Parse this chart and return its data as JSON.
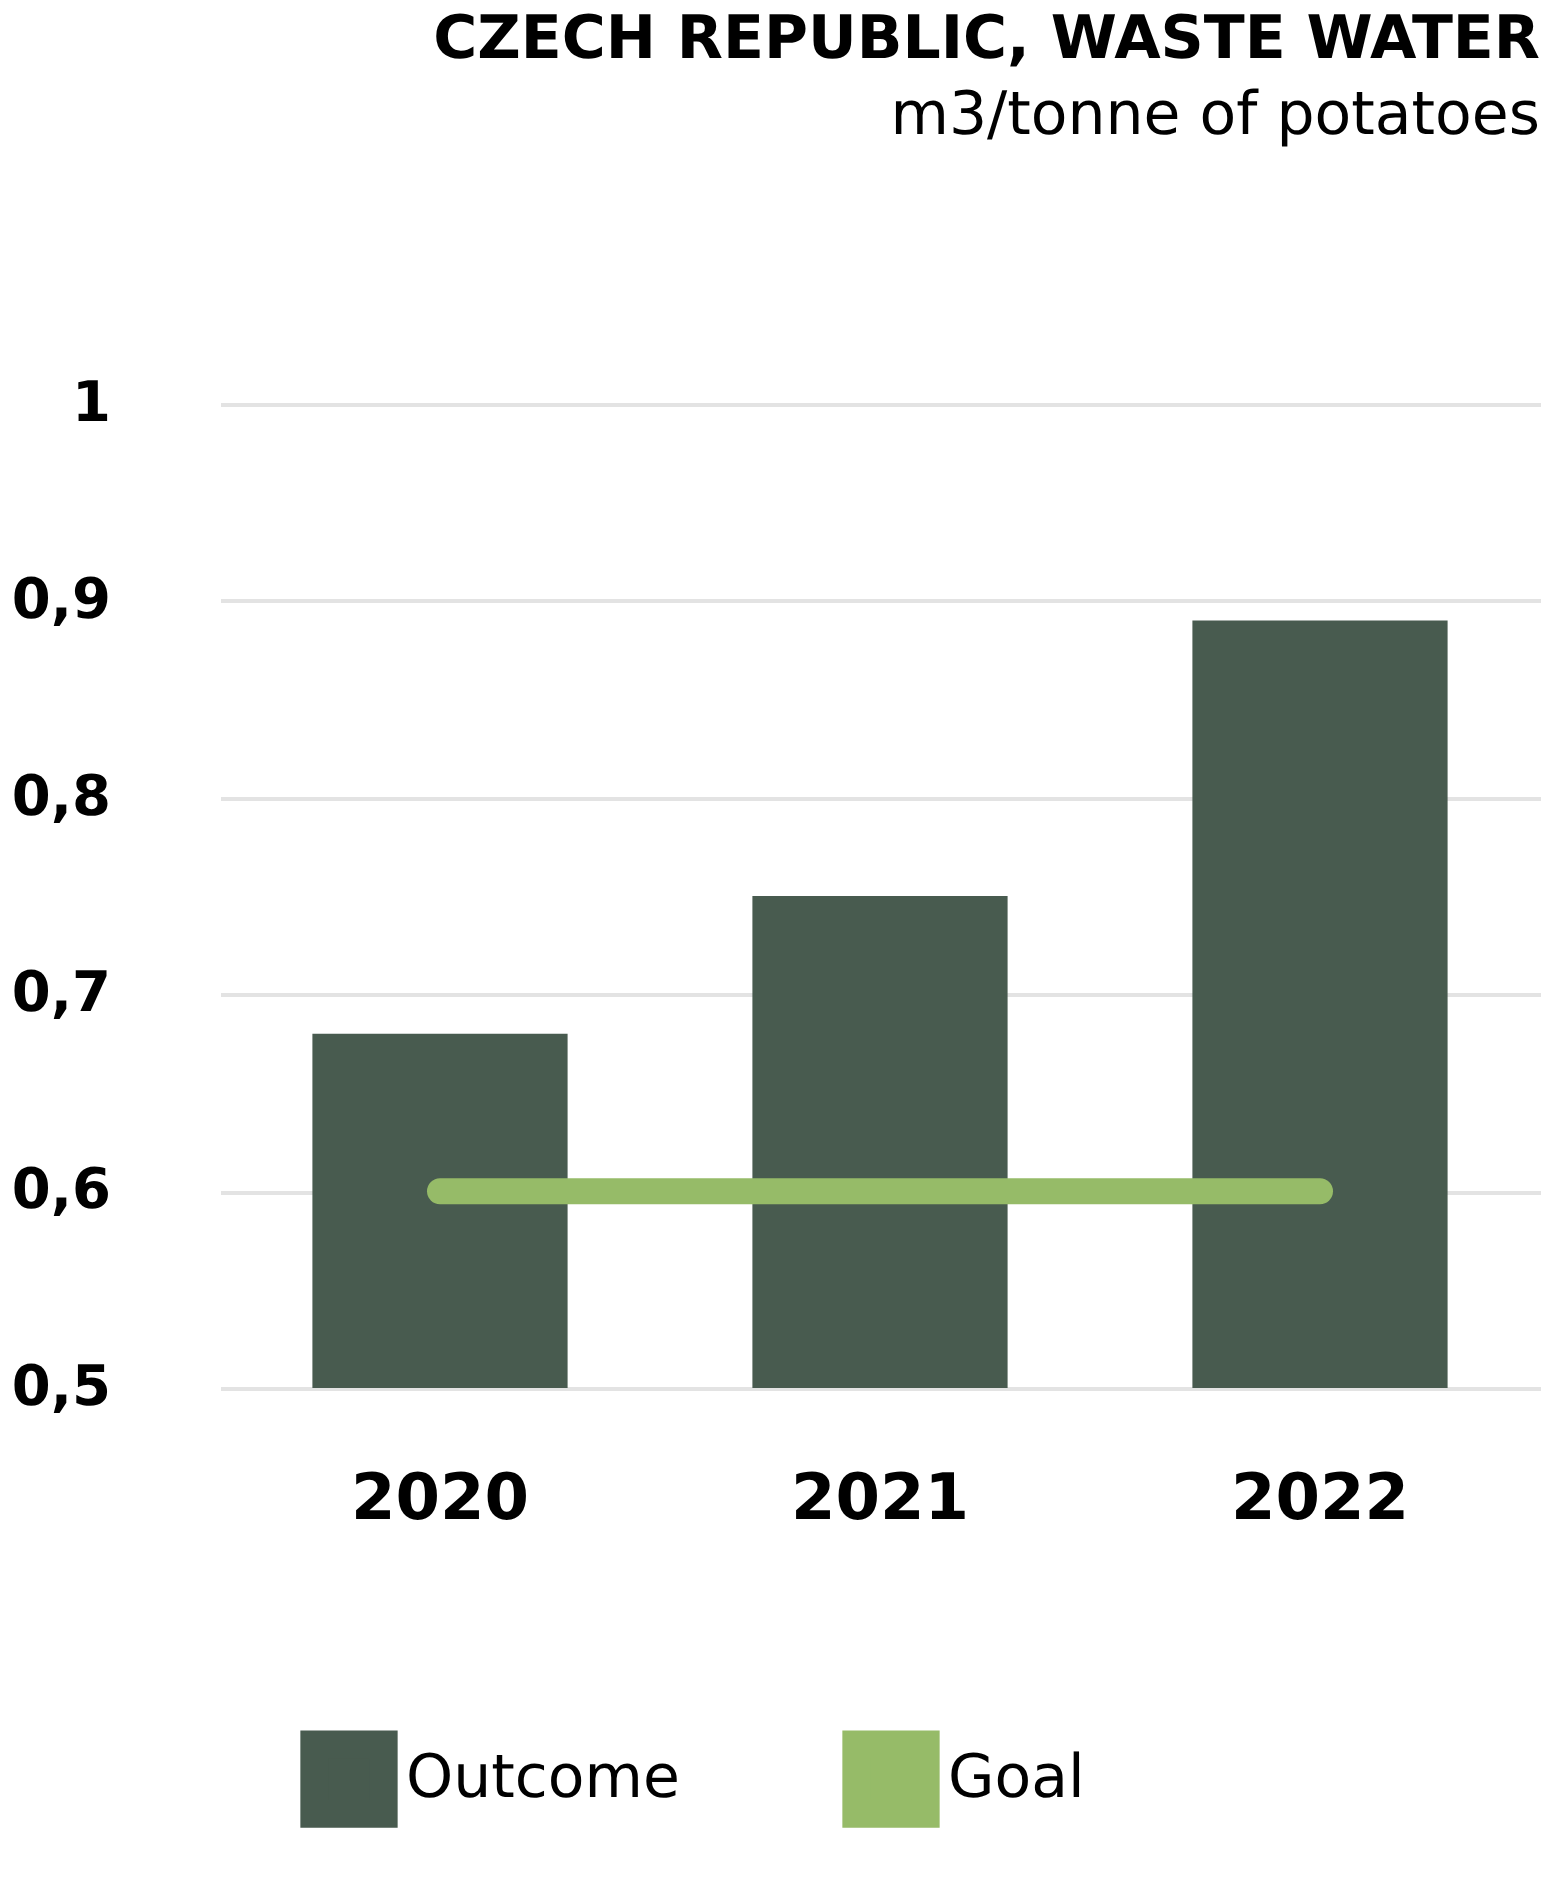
{
  "chart_data": {
    "type": "bar",
    "title": "CZECH REPUBLIC, WASTE WATER",
    "subtitle": "m3/tonne of potatoes",
    "categories": [
      "2020",
      "2021",
      "2022"
    ],
    "series": [
      {
        "name": "Outcome",
        "color": "#485b4f",
        "values": [
          0.68,
          0.75,
          0.89
        ]
      },
      {
        "name": "Goal",
        "type": "line",
        "color": "#96bb68",
        "values": [
          0.6,
          0.6,
          0.6
        ]
      }
    ],
    "ylim": [
      0.5,
      1
    ],
    "yticks": [
      {
        "value": 0.5,
        "label": "0,5"
      },
      {
        "value": 0.6,
        "label": "0,6"
      },
      {
        "value": 0.7,
        "label": "0,7"
      },
      {
        "value": 0.8,
        "label": "0,8"
      },
      {
        "value": 0.9,
        "label": "0,9"
      },
      1
    ],
    "grid": "y",
    "legend": "bottom",
    "line_style": "solid",
    "marker": "none"
  }
}
